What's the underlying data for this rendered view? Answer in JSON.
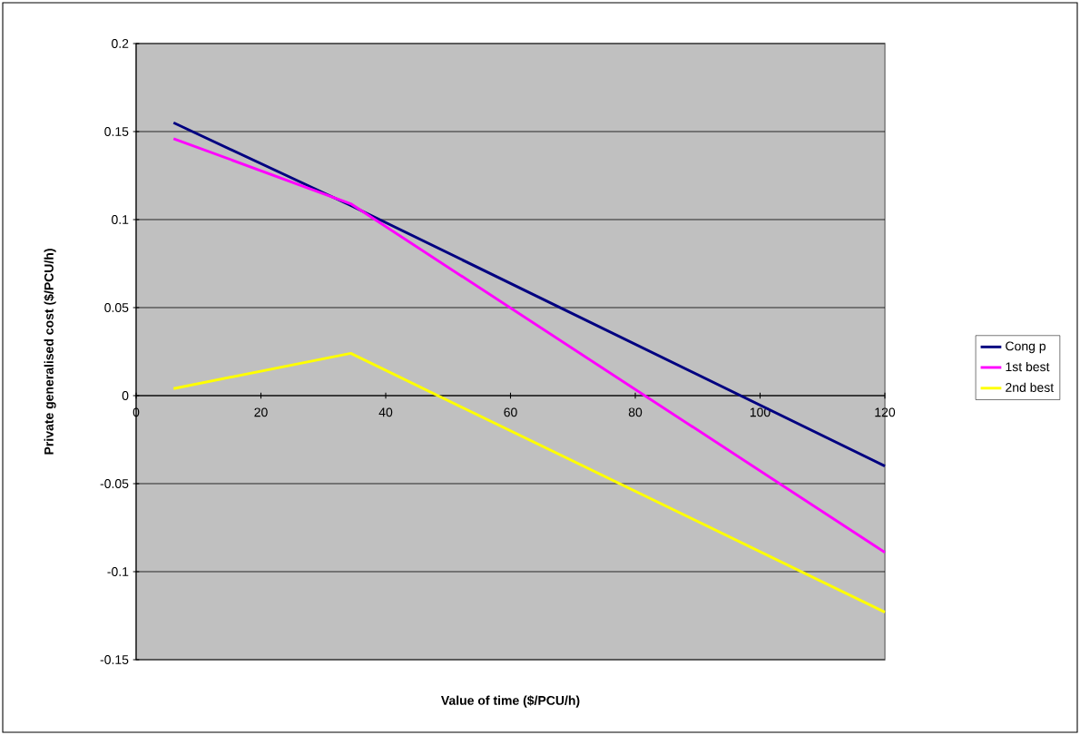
{
  "chart_data": {
    "type": "line",
    "xlabel": "Value of time ($/PCU/h)",
    "ylabel": "Private generalised cost ($/PCU/h)",
    "x": [
      6,
      34.4,
      120
    ],
    "series": [
      {
        "name": "Cong p",
        "color": "#000080",
        "values": [
          0.155,
          0.108,
          -0.04
        ]
      },
      {
        "name": "1st best",
        "color": "#ff00ff",
        "values": [
          0.146,
          0.109,
          -0.089
        ]
      },
      {
        "name": "2nd best",
        "color": "#ffff00",
        "values": [
          0.004,
          0.024,
          -0.123
        ]
      }
    ],
    "xlim": [
      0,
      120
    ],
    "ylim": [
      -0.15,
      0.2
    ],
    "xticks": [
      0,
      20,
      40,
      60,
      80,
      100,
      120
    ],
    "yticks": [
      -0.15,
      -0.1,
      -0.05,
      0,
      0.05,
      0.1,
      0.15,
      0.2
    ],
    "grid": "y",
    "legend": "right"
  }
}
